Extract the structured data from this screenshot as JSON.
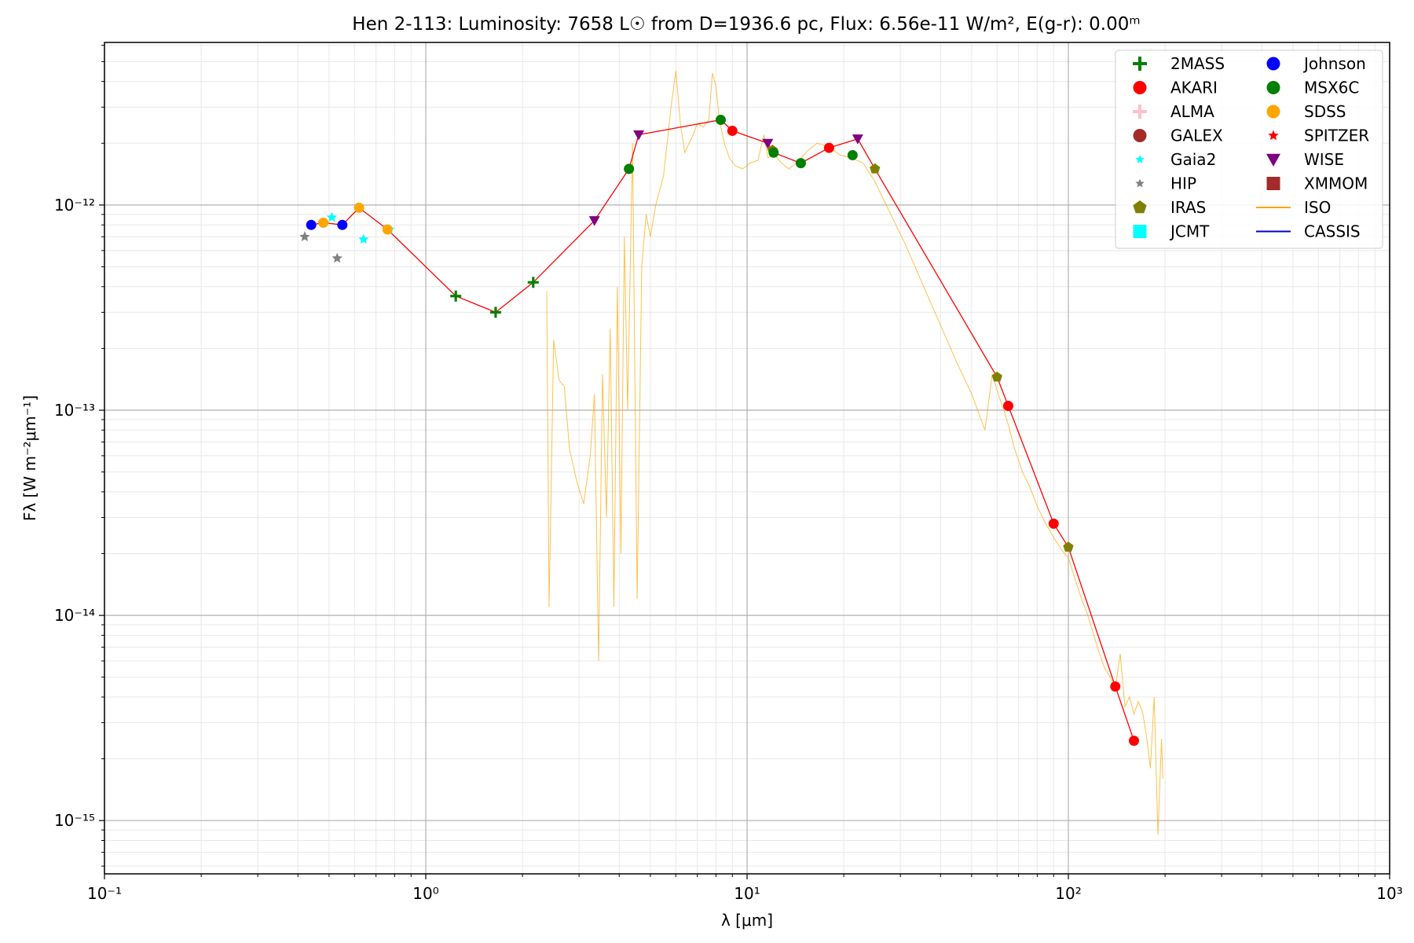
{
  "chart_data": {
    "type": "scatter",
    "title": "Hen 2-113:  Luminosity: 7658 L☉ from D=1936.6 pc, Flux: 6.56e-11 W/m², E(g-r): 0.00ᵐ",
    "xlabel": "λ [μm]",
    "ylabel": "Fλ [W m⁻²μm⁻¹]",
    "xscale": "log",
    "yscale": "log",
    "xlim": [
      0.1,
      1000
    ],
    "ylim": [
      5.5e-16,
      6.2e-12
    ],
    "x_ticks": [
      0.1,
      1,
      10,
      100,
      1000
    ],
    "x_tick_labels": [
      "10⁻¹",
      "10⁰",
      "10¹",
      "10²",
      "10³"
    ],
    "y_ticks": [
      1e-15,
      1e-14,
      1e-13,
      1e-12
    ],
    "y_tick_labels": [
      "10⁻¹⁵",
      "10⁻¹⁴",
      "10⁻¹³",
      "10⁻¹²"
    ],
    "grid": true,
    "legend_position": "upper-right",
    "sed_line": {
      "color": "#ff0000",
      "x": [
        0.44,
        0.48,
        0.55,
        0.62,
        0.76,
        1.24,
        1.65,
        2.16,
        3.35,
        4.29,
        4.6,
        8.28,
        9.0,
        11.6,
        12.1,
        14.7,
        18.0,
        22.1,
        25.0,
        60.0,
        65.0,
        90.0,
        100.0,
        140.0,
        160.0
      ],
      "y": [
        8e-13,
        8.2e-13,
        8e-13,
        9.7e-13,
        7.6e-13,
        3.6e-13,
        3e-13,
        4.2e-13,
        8.4e-13,
        1.5e-12,
        2.2e-12,
        2.6e-12,
        2.3e-12,
        2e-12,
        1.8e-12,
        1.6e-12,
        1.9e-12,
        2.1e-12,
        1.5e-12,
        1.45e-13,
        1.05e-13,
        2.8e-14,
        2.15e-14,
        4.5e-15,
        2.45e-15
      ]
    },
    "series": [
      {
        "name": "2MASS",
        "marker": "plus",
        "color": "#008000",
        "x": [
          1.24,
          1.65,
          2.16
        ],
        "y": [
          3.6e-13,
          3e-13,
          4.2e-13
        ]
      },
      {
        "name": "AKARI",
        "marker": "circle",
        "color": "#ff0000",
        "x": [
          9.0,
          18.0,
          65.0,
          90.0,
          140.0,
          160.0
        ],
        "y": [
          2.3e-12,
          1.9e-12,
          1.05e-13,
          2.8e-14,
          4.5e-15,
          2.45e-15
        ]
      },
      {
        "name": "ALMA",
        "marker": "plus",
        "color": "#ffc0cb",
        "x": [],
        "y": []
      },
      {
        "name": "GALEX",
        "marker": "circle",
        "color": "#a52a2a",
        "x": [],
        "y": []
      },
      {
        "name": "Gaia2",
        "marker": "star",
        "color": "#00ffff",
        "x": [
          0.51,
          0.64,
          0.77
        ],
        "y": [
          8.7e-13,
          6.8e-13,
          7.6e-13
        ]
      },
      {
        "name": "HIP",
        "marker": "star",
        "color": "#808080",
        "x": [
          0.42,
          0.53
        ],
        "y": [
          7e-13,
          5.5e-13
        ]
      },
      {
        "name": "IRAS",
        "marker": "pentagon",
        "color": "#808000",
        "x": [
          12.0,
          25.0,
          60.0,
          100.0
        ],
        "y": [
          1.85e-12,
          1.5e-12,
          1.45e-13,
          2.15e-14
        ]
      },
      {
        "name": "JCMT",
        "marker": "square",
        "color": "#00ffff",
        "x": [],
        "y": []
      },
      {
        "name": "Johnson",
        "marker": "circle",
        "color": "#0000ff",
        "x": [
          0.44,
          0.55
        ],
        "y": [
          8e-13,
          8e-13
        ]
      },
      {
        "name": "MSX6C",
        "marker": "circle",
        "color": "#008000",
        "x": [
          4.29,
          8.28,
          12.1,
          14.7,
          21.3
        ],
        "y": [
          1.5e-12,
          2.6e-12,
          1.8e-12,
          1.6e-12,
          1.75e-12
        ]
      },
      {
        "name": "SDSS",
        "marker": "circle",
        "color": "#ffa500",
        "x": [
          0.48,
          0.62,
          0.76
        ],
        "y": [
          8.2e-13,
          9.7e-13,
          7.6e-13
        ]
      },
      {
        "name": "SPITZER",
        "marker": "star",
        "color": "#ff0000",
        "x": [],
        "y": []
      },
      {
        "name": "WISE",
        "marker": "triangle-down",
        "color": "#800080",
        "x": [
          3.35,
          4.6,
          11.6,
          22.1
        ],
        "y": [
          8.4e-13,
          2.2e-12,
          2e-12,
          2.1e-12
        ]
      },
      {
        "name": "XMMOM",
        "marker": "square",
        "color": "#a52a2a",
        "x": [],
        "y": []
      },
      {
        "name": "ISO",
        "marker": "line",
        "color": "#ffa500",
        "x": [
          2.38,
          2.42,
          2.5,
          2.6,
          2.7,
          2.8,
          2.95,
          3.1,
          3.25,
          3.35,
          3.45,
          3.55,
          3.65,
          3.75,
          3.85,
          3.95,
          4.05,
          4.15,
          4.25,
          4.4,
          4.55,
          4.7,
          4.85,
          5.0,
          5.2,
          5.5,
          5.8,
          6.0,
          6.2,
          6.4,
          6.6,
          6.8,
          7.0,
          7.3,
          7.6,
          7.8,
          8.0,
          8.2,
          8.5,
          8.8,
          9.2,
          9.7,
          10.2,
          10.8,
          11.3,
          11.6,
          12.2,
          12.8,
          13.5,
          14.5,
          15.5,
          16.5,
          17.5,
          18.5,
          19.5,
          21,
          23,
          25,
          28,
          31,
          35,
          40,
          45,
          50,
          55,
          58,
          60.5,
          63,
          65,
          68,
          72,
          76,
          80,
          85,
          90,
          95,
          100,
          105,
          110,
          115,
          120,
          125,
          130,
          135,
          140,
          145,
          150,
          155,
          160,
          165,
          170,
          175,
          180,
          185,
          190,
          195,
          197
        ],
        "y": [
          3.8e-13,
          1.1e-14,
          2.2e-13,
          1.4e-13,
          1.3e-13,
          6.5e-14,
          4.5e-14,
          3.5e-14,
          6e-14,
          1.2e-13,
          6e-15,
          1.5e-13,
          3e-14,
          2.5e-13,
          1.1e-14,
          4e-13,
          2e-14,
          7e-13,
          1e-13,
          2e-12,
          1.2e-14,
          5e-13,
          9e-13,
          7e-13,
          1e-12,
          1.4e-12,
          3e-12,
          4.5e-12,
          2.5e-12,
          1.8e-12,
          2e-12,
          2.2e-12,
          2.5e-12,
          2.4e-12,
          2.6e-12,
          4.4e-12,
          3.8e-12,
          2.6e-12,
          2e-12,
          1.7e-12,
          1.55e-12,
          1.5e-12,
          1.6e-12,
          1.65e-12,
          2.2e-12,
          1.7e-12,
          1.75e-12,
          1.6e-12,
          1.5e-12,
          1.65e-12,
          1.85e-12,
          2e-12,
          1.95e-12,
          1.85e-12,
          1.75e-12,
          1.7e-12,
          1.6e-12,
          1.3e-12,
          9e-13,
          6.5e-13,
          4.2e-13,
          2.6e-13,
          1.7e-13,
          1.2e-13,
          8e-14,
          1.5e-13,
          1.2e-13,
          1e-13,
          8.5e-14,
          6.5e-14,
          5e-14,
          4.2e-14,
          3.4e-14,
          2.8e-14,
          2.4e-14,
          2.1e-14,
          1.9e-14,
          1.5e-14,
          1.2e-14,
          1e-14,
          8e-15,
          6.5e-15,
          5.5e-15,
          5e-15,
          4.4e-15,
          6.5e-15,
          3.6e-15,
          4e-15,
          3.3e-15,
          3.8e-15,
          3.4e-15,
          2.6e-15,
          1.8e-15,
          4e-15,
          8.5e-16,
          2.5e-15,
          1.6e-15
        ]
      },
      {
        "name": "CASSIS",
        "marker": "line",
        "color": "#0000cd",
        "x": [],
        "y": []
      }
    ]
  }
}
